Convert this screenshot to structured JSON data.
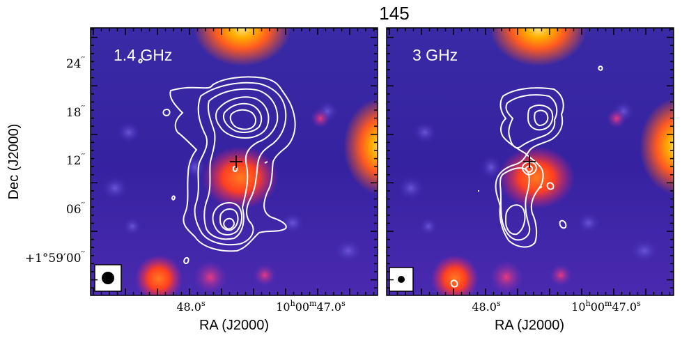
{
  "figure": {
    "title": "145",
    "y_axis_label": "Dec (J2000)",
    "dec_ticks": [
      {
        "major": "24",
        "sup": "′′"
      },
      {
        "major": "18",
        "sup": "′′"
      },
      {
        "major": "12",
        "sup": "′′"
      },
      {
        "major": "06",
        "sup": "′′"
      },
      {
        "major": "+1°59′00",
        "sup": "′′"
      }
    ],
    "panels": [
      {
        "label": "1.4 GHz",
        "x_axis_label": "RA (J2000)",
        "ra_tick_left": {
          "text": "48.0",
          "sup": "s"
        },
        "ra_tick_right": {
          "text": "10",
          "h": "h",
          "m_text": "00",
          "m": "m",
          "s_text": "47.0",
          "s": "s"
        }
      },
      {
        "label": "3 GHz",
        "x_axis_label": "RA (J2000)",
        "ra_tick_left": {
          "text": "48.0",
          "sup": "s"
        },
        "ra_tick_right": {
          "text": "10",
          "h": "h",
          "m_text": "00",
          "m": "m",
          "s_text": "47.0",
          "s": "s"
        }
      }
    ],
    "colors": {
      "background_base": "#3b22a8",
      "contour": "#ffffff",
      "hot": "#ffb000",
      "marker": "#000000"
    }
  }
}
